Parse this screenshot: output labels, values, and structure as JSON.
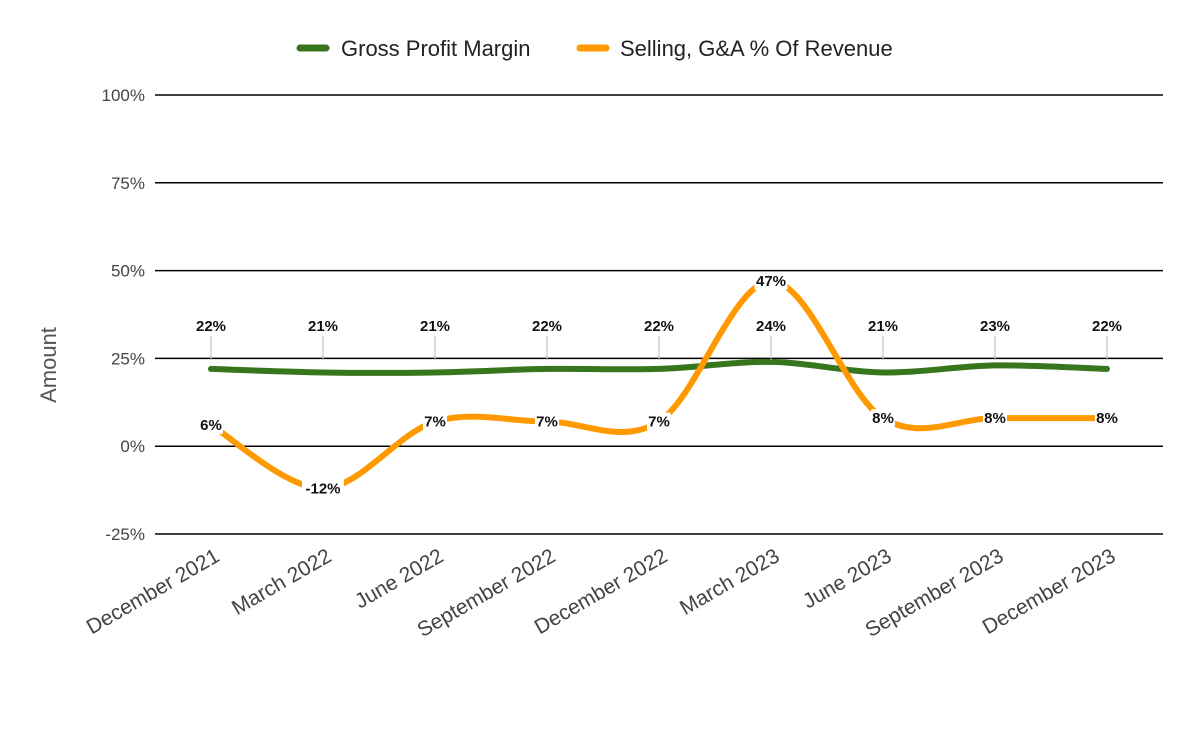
{
  "chart_data": {
    "type": "line",
    "title": "",
    "xlabel": "",
    "ylabel": "Amount",
    "categories": [
      "December 2021",
      "March 2022",
      "June 2022",
      "September 2022",
      "December 2022",
      "March 2023",
      "June 2023",
      "September 2023",
      "December 2023"
    ],
    "series": [
      {
        "name": "Gross Profit Margin",
        "color": "#38761d",
        "values": [
          22,
          21,
          21,
          22,
          22,
          24,
          21,
          23,
          22
        ],
        "labels": [
          "22%",
          "21%",
          "21%",
          "22%",
          "22%",
          "24%",
          "21%",
          "23%",
          "22%"
        ]
      },
      {
        "name": "Selling, G&A % Of Revenue",
        "color": "#ff9900",
        "values": [
          6,
          -12,
          7,
          7,
          7,
          47,
          8,
          8,
          8
        ],
        "labels": [
          "6%",
          "-12%",
          "7%",
          "7%",
          "7%",
          "47%",
          "8%",
          "8%",
          "8%"
        ]
      }
    ],
    "ylim": [
      -25,
      100
    ],
    "yticks": [
      -25,
      0,
      25,
      50,
      75,
      100
    ],
    "ytick_labels": [
      "-25%",
      "0%",
      "25%",
      "50%",
      "75%",
      "100%"
    ],
    "grid": true,
    "smooth": true,
    "legend_position": "top-center"
  }
}
